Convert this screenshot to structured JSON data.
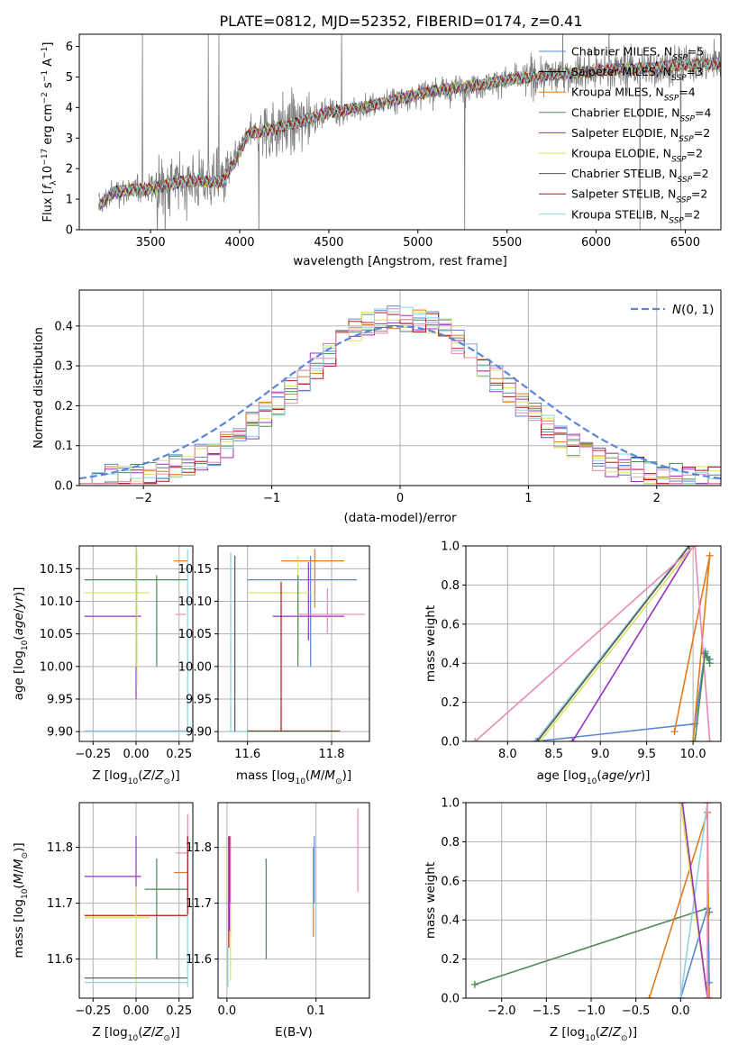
{
  "figure_title": "PLATE=0812, MJD=52352, FIBERID=0174, z=0.41",
  "colors": {
    "Chabrier MILES": "#5b86d6",
    "Salpeter MILES": "#000000",
    "Kroupa MILES": "#e07b1f",
    "Chabrier ELODIE": "#4e8a55",
    "Salpeter ELODIE": "#9b30c0",
    "Kroupa ELODIE": "#d8e45a",
    "Chabrier STELIB": "#555555",
    "Salpeter STELIB": "#b01818",
    "Kroupa STELIB": "#8ad3e0",
    "pink": "#e889b9",
    "grid": "#b0b0b0",
    "normal": "#5b86d6",
    "spectrum_gray": "#808080"
  },
  "legend_models": [
    {
      "name": "Chabrier MILES",
      "nssp": "5"
    },
    {
      "name": "Salpeter MILES",
      "nssp": "3"
    },
    {
      "name": "Kroupa MILES",
      "nssp": "4"
    },
    {
      "name": "Chabrier ELODIE",
      "nssp": "4"
    },
    {
      "name": "Salpeter ELODIE",
      "nssp": "2"
    },
    {
      "name": "Kroupa ELODIE",
      "nssp": "2"
    },
    {
      "name": "Chabrier STELIB",
      "nssp": "2"
    },
    {
      "name": "Salpeter STELIB",
      "nssp": "2"
    },
    {
      "name": "Kroupa STELIB",
      "nssp": "2"
    }
  ],
  "chart_data": [
    {
      "id": "spectrum",
      "type": "line",
      "xlabel": "wavelength [Angstrom, rest frame]",
      "ylabel": "Flux [f_λ 10^-17 erg cm^-2 s^-1 A^-1]",
      "xlim": [
        3100,
        6700
      ],
      "ylim": [
        0,
        6.4
      ],
      "xticks": [
        3500,
        4000,
        4500,
        5000,
        5500,
        6000,
        6500
      ],
      "yticks": [
        0,
        1,
        2,
        3,
        4,
        5,
        6
      ],
      "grid": false,
      "legend": "right",
      "continuum": {
        "x": [
          3210,
          3300,
          3500,
          3700,
          3900,
          3960,
          4050,
          4200,
          4350,
          4500,
          4700,
          4900,
          5100,
          5300,
          5500,
          5700,
          5900,
          6100,
          6300,
          6500,
          6700
        ],
        "y": [
          0.8,
          1.25,
          1.35,
          1.6,
          1.55,
          2.1,
          3.15,
          3.3,
          3.55,
          3.85,
          4.0,
          4.3,
          4.55,
          4.7,
          4.9,
          5.05,
          5.15,
          5.25,
          5.3,
          5.4,
          5.45
        ]
      },
      "x_start": 3210
    },
    {
      "id": "residuals",
      "type": "line",
      "xlabel": "(data-model)/error",
      "ylabel": "Normed distribution",
      "xlim": [
        -2.5,
        2.5
      ],
      "ylim": [
        0,
        0.49
      ],
      "xticks": [
        -2,
        -1,
        0,
        1,
        2
      ],
      "yticks": [
        0,
        0.1,
        0.2,
        0.3,
        0.4
      ],
      "grid": true,
      "legend": "top-right",
      "legend_label": "N(0,1)",
      "bin_width": 0.1
    },
    {
      "id": "age_vs_Z",
      "type": "scatter",
      "xlabel": "Z [log10(Z/Z☉)]",
      "ylabel": "age [log10(age/yr)]",
      "xlim": [
        -0.33,
        0.33
      ],
      "ylim": [
        9.885,
        10.185
      ],
      "xticks": [
        -0.25,
        0.0,
        0.25
      ],
      "yticks": [
        9.9,
        9.95,
        10.0,
        10.05,
        10.1,
        10.15
      ],
      "grid": true,
      "segments": [
        {
          "c": "Chabrier ELODIE",
          "h": [
            -0.3,
            0.3,
            10.133
          ],
          "v": [
            0.12,
            10.0,
            10.14
          ]
        },
        {
          "c": "Kroupa ELODIE",
          "h": [
            -0.3,
            0.08,
            10.113
          ]
        },
        {
          "c": "Salpeter ELODIE",
          "h": [
            -0.3,
            0.03,
            10.077
          ],
          "v": [
            0.0,
            9.95,
            10.0
          ]
        },
        {
          "c": "Kroupa MILES",
          "h": [
            0.22,
            0.3,
            10.162
          ]
        },
        {
          "c": "pink",
          "h": [
            0.23,
            0.29,
            10.08
          ]
        },
        {
          "c": "Chabrier MILES",
          "h": [
            -0.3,
            0.3,
            9.901
          ]
        },
        {
          "c": "Kroupa STELIB",
          "h": [
            -0.3,
            0.3,
            9.9005
          ],
          "v": [
            0.3,
            9.9,
            10.18
          ]
        },
        {
          "c": "Kroupa ELODIE",
          "v": [
            0.005,
            9.97,
            10.18
          ]
        }
      ]
    },
    {
      "id": "age_vs_mass",
      "type": "scatter",
      "xlabel": "mass [log10(M/M☉)]",
      "ylabel": "",
      "xlim": [
        11.53,
        11.89
      ],
      "ylim": [
        9.885,
        10.185
      ],
      "xticks": [
        11.6,
        11.8
      ],
      "yticks": [
        9.9,
        9.95,
        10.0,
        10.05,
        10.1,
        10.15
      ],
      "grid": true,
      "segments": [
        {
          "c": "Chabrier MILES",
          "h": [
            11.6,
            11.86,
            10.133
          ],
          "v": [
            11.75,
            10.0,
            10.17
          ]
        },
        {
          "c": "Kroupa MILES",
          "h": [
            11.68,
            11.83,
            10.162
          ],
          "v": [
            11.76,
            10.09,
            10.18
          ]
        },
        {
          "c": "Salpeter ELODIE",
          "h": [
            11.66,
            11.83,
            10.077
          ],
          "v": [
            11.745,
            10.04,
            10.16
          ]
        },
        {
          "c": "Kroupa ELODIE",
          "h": [
            11.6,
            11.75,
            10.113
          ],
          "v": [
            11.72,
            10.02,
            10.17
          ]
        },
        {
          "c": "Chabrier ELODIE",
          "v": [
            11.72,
            10.0,
            10.14
          ]
        },
        {
          "c": "pink",
          "h": [
            11.72,
            11.88,
            10.08
          ],
          "v": [
            11.79,
            10.05,
            10.12
          ]
        },
        {
          "c": "Salpeter STELIB",
          "h": [
            11.6,
            11.82,
            9.901
          ],
          "v": [
            11.68,
            9.9,
            10.13
          ]
        },
        {
          "c": "Kroupa STELIB",
          "h": [
            11.55,
            11.6,
            9.9005
          ],
          "v": [
            11.56,
            9.9,
            10.175
          ]
        },
        {
          "c": "Chabrier STELIB",
          "v": [
            11.57,
            9.9,
            10.17
          ]
        }
      ]
    },
    {
      "id": "age_weights",
      "type": "line",
      "xlabel": "age [log10(age/yr)]",
      "ylabel": "mass weight",
      "xlim": [
        7.55,
        10.3
      ],
      "ylim": [
        0,
        1.0
      ],
      "xticks": [
        8.0,
        8.5,
        9.0,
        9.5,
        10.0
      ],
      "yticks": [
        0.0,
        0.2,
        0.4,
        0.6,
        0.8,
        1.0
      ],
      "grid": true,
      "series": [
        {
          "c": "Chabrier MILES",
          "x": [
            8.3,
            10.02,
            10.13,
            10.18
          ],
          "y": [
            0.0,
            0.09,
            0.46,
            0.42
          ]
        },
        {
          "c": "Kroupa MILES",
          "x": [
            9.8,
            10.18,
            10.0
          ],
          "y": [
            0.05,
            0.95,
            0.0
          ]
        },
        {
          "c": "Salpeter ELODIE",
          "x": [
            8.7,
            10.0
          ],
          "y": [
            0.0,
            1.0
          ]
        },
        {
          "c": "Kroupa ELODIE",
          "x": [
            8.35,
            10.0
          ],
          "y": [
            0.0,
            1.0
          ]
        },
        {
          "c": "Kroupa STELIB",
          "x": [
            8.3,
            9.95
          ],
          "y": [
            0.0,
            1.0
          ]
        },
        {
          "c": "Chabrier STELIB",
          "x": [
            8.32,
            9.96
          ],
          "y": [
            0.0,
            1.0
          ]
        },
        {
          "c": "pink",
          "x": [
            7.65,
            10.02,
            10.18
          ],
          "y": [
            0.0,
            1.0,
            0.0
          ]
        },
        {
          "c": "Chabrier ELODIE",
          "x": [
            10.02,
            10.13,
            10.15,
            10.18
          ],
          "y": [
            0.0,
            0.45,
            0.43,
            0.4
          ]
        }
      ]
    },
    {
      "id": "mass_vs_Z",
      "type": "scatter",
      "xlabel": "Z [log10(Z/Z☉)]",
      "ylabel": "mass [log10(M/M☉)]",
      "xlim": [
        -0.33,
        0.33
      ],
      "ylim": [
        11.53,
        11.88
      ],
      "xticks": [
        -0.25,
        0.0,
        0.25
      ],
      "yticks": [
        11.6,
        11.7,
        11.8
      ],
      "grid": true,
      "segments": [
        {
          "c": "Salpeter ELODIE",
          "h": [
            -0.3,
            0.03,
            11.748
          ],
          "v": [
            0.0,
            11.68,
            11.82
          ]
        },
        {
          "c": "Chabrier ELODIE",
          "h": [
            0.05,
            0.3,
            11.725
          ],
          "v": [
            0.12,
            11.6,
            11.78
          ]
        },
        {
          "c": "Salpeter STELIB",
          "h": [
            -0.3,
            0.3,
            11.678
          ]
        },
        {
          "c": "Kroupa ELODIE",
          "h": [
            -0.3,
            0.08,
            11.674
          ],
          "v": [
            0.0,
            11.55,
            11.73
          ]
        },
        {
          "c": "Kroupa MILES",
          "h": [
            0.22,
            0.3,
            11.755
          ]
        },
        {
          "c": "pink",
          "h": [
            0.23,
            0.3,
            11.79
          ],
          "v": [
            0.3,
            11.72,
            11.86
          ]
        },
        {
          "c": "Chabrier STELIB",
          "h": [
            -0.3,
            0.3,
            11.566
          ]
        },
        {
          "c": "Kroupa STELIB",
          "h": [
            -0.3,
            0.3,
            11.558
          ],
          "v": [
            0.3,
            11.55,
            11.8
          ]
        },
        {
          "c": "Salpeter STELIB",
          "v": [
            0.3,
            11.68,
            11.82
          ]
        }
      ]
    },
    {
      "id": "mass_vs_EBV",
      "type": "scatter",
      "xlabel": "E(B-V)",
      "ylabel": "",
      "xlim": [
        -0.01,
        0.16
      ],
      "ylim": [
        11.53,
        11.88
      ],
      "xticks": [
        0.0,
        0.1
      ],
      "yticks": [
        11.6,
        11.7,
        11.8
      ],
      "grid": true,
      "segments": [
        {
          "c": "Salpeter STELIB",
          "v": [
            0.002,
            11.62,
            11.82
          ]
        },
        {
          "c": "pink",
          "v": [
            0.004,
            11.64,
            11.82
          ]
        },
        {
          "c": "Salpeter ELODIE",
          "v": [
            0.003,
            11.65,
            11.82
          ]
        },
        {
          "c": "Kroupa STELIB",
          "v": [
            0.001,
            11.55,
            11.62
          ]
        },
        {
          "c": "Kroupa ELODIE",
          "v": [
            0.004,
            11.56,
            11.7
          ]
        },
        {
          "c": "Chabrier ELODIE",
          "v": [
            0.044,
            11.6,
            11.78
          ]
        },
        {
          "c": "Kroupa MILES",
          "v": [
            0.097,
            11.64,
            11.8
          ]
        },
        {
          "c": "Chabrier MILES",
          "v": [
            0.098,
            11.7,
            11.82
          ]
        },
        {
          "c": "pink",
          "v": [
            0.147,
            11.72,
            11.87
          ]
        }
      ]
    },
    {
      "id": "Z_weights",
      "type": "line",
      "xlabel": "Z [log10(Z/Z☉)]",
      "ylabel": "mass weight",
      "xlim": [
        -2.4,
        0.45
      ],
      "ylim": [
        0,
        1.0
      ],
      "xticks": [
        -2.0,
        -1.5,
        -1.0,
        -0.5,
        0.0
      ],
      "yticks": [
        0.0,
        0.2,
        0.4,
        0.6,
        0.8,
        1.0
      ],
      "grid": true,
      "series": [
        {
          "c": "Chabrier ELODIE",
          "x": [
            -2.3,
            0.3,
            0.32
          ],
          "y": [
            0.07,
            0.46,
            0.44
          ]
        },
        {
          "c": "Kroupa MILES",
          "x": [
            -0.35,
            0.3,
            0.32
          ],
          "y": [
            0.0,
            0.95,
            0.0
          ]
        },
        {
          "c": "Chabrier MILES",
          "x": [
            0.0,
            0.3,
            0.32
          ],
          "y": [
            0.0,
            0.46,
            0.08
          ]
        },
        {
          "c": "Kroupa ELODIE",
          "x": [
            0.0,
            0.3
          ],
          "y": [
            1.0,
            0.0
          ]
        },
        {
          "c": "Kroupa STELIB",
          "x": [
            0.0,
            0.3
          ],
          "y": [
            0.0,
            1.0
          ]
        },
        {
          "c": "Salpeter ELODIE",
          "x": [
            0.02,
            0.3
          ],
          "y": [
            1.0,
            0.0
          ]
        },
        {
          "c": "pink",
          "x": [
            0.3,
            0.3
          ],
          "y": [
            0.0,
            1.0
          ]
        }
      ]
    }
  ]
}
